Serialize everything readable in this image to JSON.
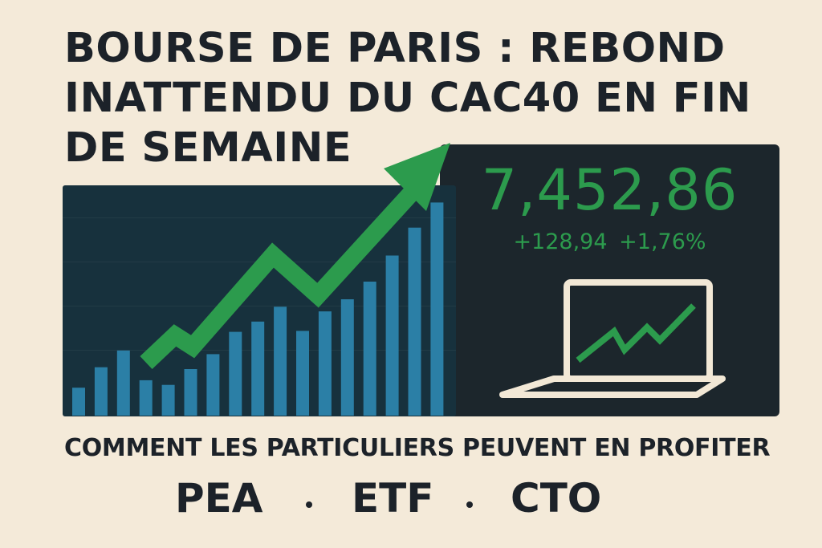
{
  "headline": {
    "line1": "BOURSE DE PARIS : REBOND",
    "line2": "INATTENDU DU CAC40 EN FIN",
    "line3": "DE SEMAINE"
  },
  "index": {
    "value": "7,452,86",
    "change_points": "+128,94",
    "change_percent": "+1,76%"
  },
  "subheadline": "COMMENT LES PARTICULIERS PEUVENT EN PROFITER",
  "products": [
    "PEA",
    "ETF",
    "CTO"
  ],
  "icons": {
    "trend": "trend-arrow-icon",
    "laptop": "laptop-chart-icon"
  },
  "colors": {
    "background": "#f4ead9",
    "accent_green": "#2c9b4d",
    "bars": "#2b7fa6",
    "dark_panel": "#17313d",
    "text_dark": "#1c2229"
  },
  "chart_data": {
    "type": "bar",
    "values": [
      30,
      52,
      70,
      38,
      33,
      50,
      66,
      90,
      101,
      117,
      91,
      112,
      125,
      144,
      172,
      202,
      229
    ],
    "ylim": [
      0,
      250
    ]
  }
}
